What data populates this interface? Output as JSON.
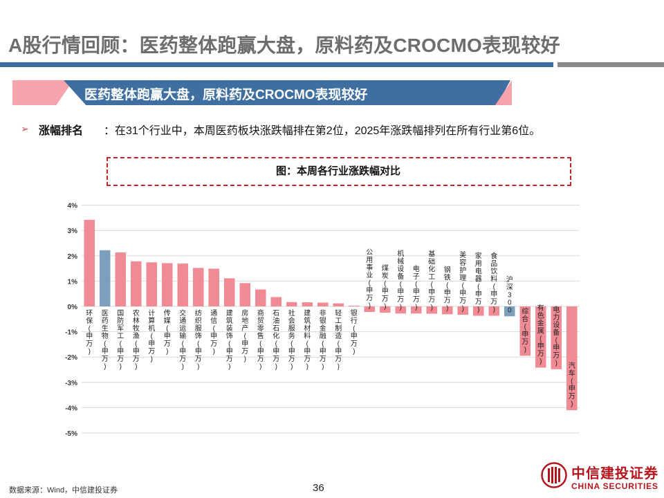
{
  "header": {
    "title": "A股行情回顾：医药整体跑赢大盘，原料药及CROCMO表现较好",
    "banner": "医药整体跑赢大盘，原料药及CROCMO表现较好"
  },
  "bullet": {
    "label": "涨幅排名",
    "text": "：在31个行业中，本周医药板块涨跌幅排在第2位，2025年涨跌幅排列在所有行业第6位。"
  },
  "figure_title": "图：本周各行业涨跌幅对比",
  "chart_data": {
    "type": "bar",
    "categories": [
      "环保(申万)",
      "医药生物(申万)",
      "国防军工(申万)",
      "农林牧渔(申万)",
      "计算机(申万)",
      "传媒(申万)",
      "交通运输(申万)",
      "纺织服饰(申万)",
      "通信(申万)",
      "建筑装饰(申万)",
      "房地产(申万)",
      "商贸零售(申万)",
      "石油石化(申万)",
      "社会服务(申万)",
      "建筑材料(申万)",
      "非银金融(申万)",
      "轻工制造(申万)",
      "银行(申万)",
      "公用事业(申万)",
      "煤炭(申万)",
      "机械设备(申万)",
      "电子(申万)",
      "基础化工(申万)",
      "钢铁(申万)",
      "美容护理(申万)",
      "家用电器(申万)",
      "食品饮料(申万)",
      "沪深300",
      "综合(申万)",
      "有色金属(申万)",
      "电力设备(申万)",
      "汽车(申万)"
    ],
    "values": [
      3.42,
      2.22,
      2.13,
      1.78,
      1.74,
      1.71,
      1.69,
      1.52,
      1.49,
      1.11,
      0.92,
      0.67,
      0.37,
      0.17,
      0.16,
      0.15,
      0.12,
      0.03,
      -0.22,
      -0.25,
      -0.28,
      -0.28,
      -0.29,
      -0.31,
      -0.33,
      -0.37,
      -0.37,
      -0.39,
      -1.95,
      -2.42,
      -2.48,
      -4.1
    ],
    "highlight": [
      "医药生物(申万)",
      "沪深300"
    ],
    "colors": {
      "default": "#f08a94",
      "highlight": "#7d9fbe"
    },
    "ylim": [
      -5,
      4
    ],
    "yticks": [
      "4%",
      "3%",
      "2%",
      "1%",
      "0%",
      "-1%",
      "-2%",
      "-3%",
      "-4%",
      "-5%"
    ],
    "grid": true
  },
  "footer": {
    "source": "数据来源：Wind，中信建投证券",
    "page": "36"
  },
  "logo": {
    "name_cn": "中信建投证券",
    "name_en": "CHINA SECURITIES",
    "color": "#b4151d"
  }
}
